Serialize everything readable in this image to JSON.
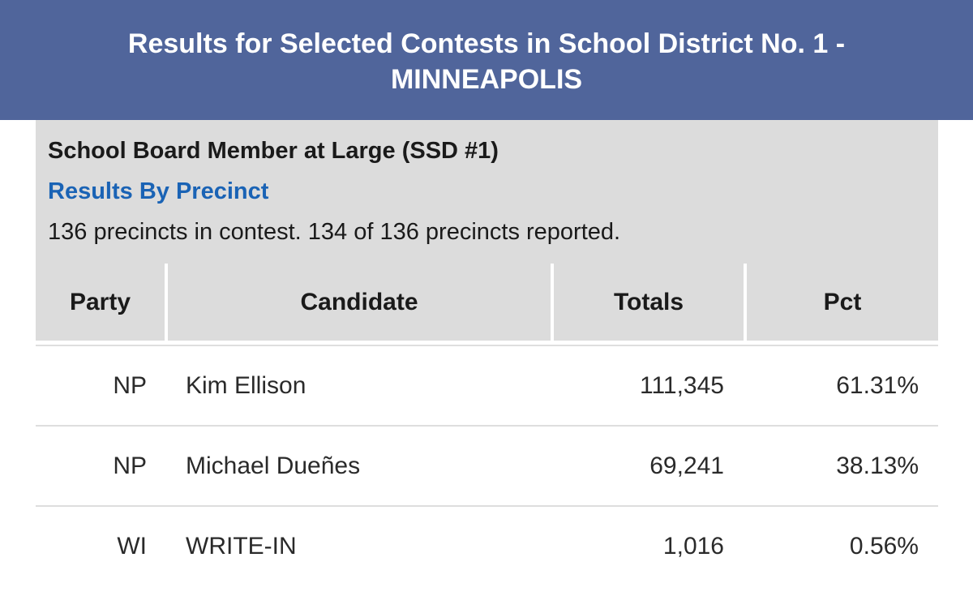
{
  "banner": {
    "title": "Results for Selected Contests in School District No. 1 - MINNEAPOLIS"
  },
  "contest": {
    "name": "School Board Member at Large (SSD #1)",
    "link_label": "Results By Precinct",
    "status": "136 precincts in contest. 134 of 136 precincts reported."
  },
  "table": {
    "headers": {
      "party": "Party",
      "candidate": "Candidate",
      "totals": "Totals",
      "pct": "Pct"
    },
    "rows": [
      {
        "party": "NP",
        "candidate": "Kim Ellison",
        "totals": "111,345",
        "pct": "61.31%"
      },
      {
        "party": "NP",
        "candidate": "Michael Dueñes",
        "totals": "69,241",
        "pct": "38.13%"
      },
      {
        "party": "WI",
        "candidate": "WRITE-IN",
        "totals": "1,016",
        "pct": "0.56%"
      }
    ]
  },
  "colors": {
    "banner_bg": "#50659b",
    "link": "#1a63b5",
    "header_bg": "#dcdcdc"
  }
}
